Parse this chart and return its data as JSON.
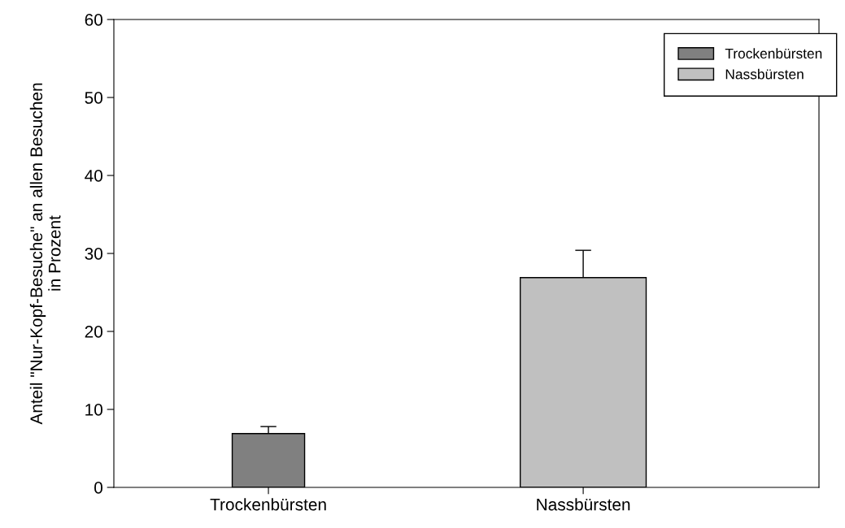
{
  "chart_data": {
    "type": "bar",
    "ylabel": "Anteil \"Nur-Kopf-Besuche\" an allen Besuchen\nin Prozent",
    "categories": [
      "Trockenbürsten",
      "Nassbürsten"
    ],
    "series": [
      {
        "name": "Trockenbürsten",
        "color": "#808080",
        "values": [
          6.9,
          null
        ],
        "errors": [
          [
            6.9,
            7.8
          ],
          null
        ]
      },
      {
        "name": "Nassbürsten",
        "color": "#c0c0c0",
        "values": [
          null,
          26.9
        ],
        "errors": [
          null,
          [
            26.9,
            30.4
          ]
        ]
      }
    ],
    "ylim": [
      0,
      60
    ],
    "yticks": [
      0,
      10,
      20,
      30,
      40,
      50,
      60
    ],
    "grid": false,
    "legend": "top right"
  }
}
